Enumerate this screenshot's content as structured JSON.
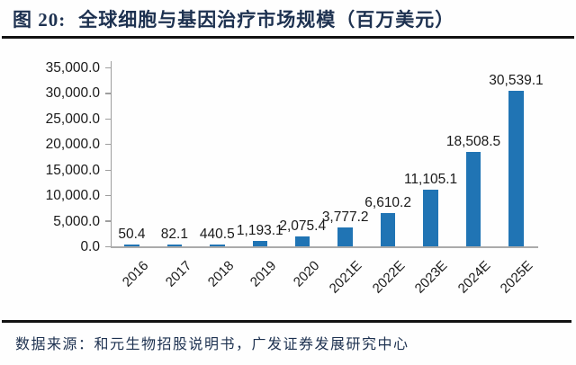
{
  "header": {
    "title_prefix": "图 20:",
    "title_text": "全球细胞与基因治疗市场规模（百万美元）"
  },
  "footer": {
    "source": "数据来源：和元生物招股说明书，广发证券发展研究中心"
  },
  "colors": {
    "bar": "#2074B4",
    "heading": "#1D3150",
    "rule": "#121212",
    "axis": "#9E9E9E",
    "text": "#1A1A1A"
  },
  "chart_data": {
    "type": "bar",
    "title": "全球细胞与基因治疗市场规模（百万美元）",
    "unit": "百万美元",
    "categories": [
      "2016",
      "2017",
      "2018",
      "2019",
      "2020",
      "2021E",
      "2022E",
      "2023E",
      "2024E",
      "2025E"
    ],
    "values": [
      50.4,
      82.1,
      440.5,
      1193.1,
      2075.4,
      3777.2,
      6610.2,
      11105.1,
      18508.5,
      30539.1
    ],
    "value_labels": [
      "50.4",
      "82.1",
      "440.5",
      "1,193.1",
      "2,075.4",
      "3,777.2",
      "6,610.2",
      "11,105.1",
      "18,508.5",
      "30,539.1"
    ],
    "y_ticks": [
      "35,000.0",
      "30,000.0",
      "25,000.0",
      "20,000.0",
      "15,000.0",
      "10,000.0",
      "5,000.0",
      "0.0"
    ],
    "y_tick_values": [
      35000,
      30000,
      25000,
      20000,
      15000,
      10000,
      5000,
      0
    ],
    "ylim": [
      0,
      35000
    ],
    "xlabel": "",
    "ylabel": "",
    "grid": false,
    "legend": false,
    "data_labels": "outside-end"
  }
}
